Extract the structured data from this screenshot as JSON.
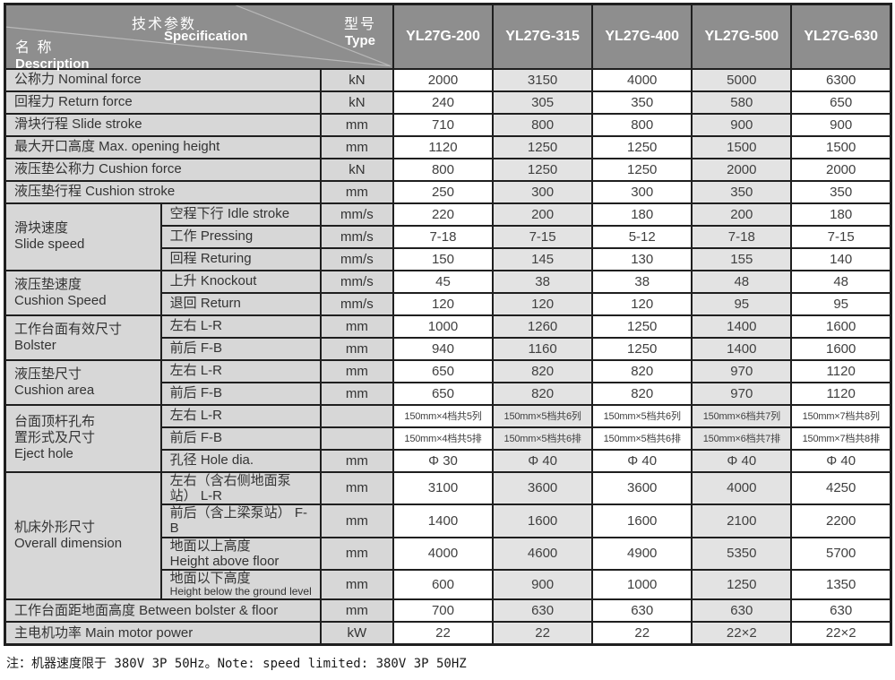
{
  "header": {
    "spec_zh": "技术参数",
    "spec_en": "Specification",
    "name_zh": "名 称",
    "name_en": "Description",
    "type_zh": "型号",
    "type_en": "Type",
    "models": [
      "YL27G-200",
      "YL27G-315",
      "YL27G-400",
      "YL27G-500",
      "YL27G-630"
    ]
  },
  "rows": [
    {
      "full": true,
      "label": [
        "公称力 Nominal force"
      ],
      "unit": "kN",
      "values": [
        "2000",
        "3150",
        "4000",
        "5000",
        "6300"
      ]
    },
    {
      "full": true,
      "label": [
        "回程力 Return force"
      ],
      "unit": "kN",
      "values": [
        "240",
        "305",
        "350",
        "580",
        "650"
      ]
    },
    {
      "full": true,
      "label": [
        "滑块行程 Slide stroke"
      ],
      "unit": "mm",
      "values": [
        "710",
        "800",
        "800",
        "900",
        "900"
      ]
    },
    {
      "full": true,
      "label": [
        "最大开口高度 Max. opening height"
      ],
      "unit": "mm",
      "values": [
        "1120",
        "1250",
        "1250",
        "1500",
        "1500"
      ]
    },
    {
      "full": true,
      "label": [
        "液压垫公称力 Cushion force"
      ],
      "unit": "kN",
      "values": [
        "800",
        "1250",
        "1250",
        "2000",
        "2000"
      ]
    },
    {
      "full": true,
      "label": [
        "液压垫行程 Cushion stroke"
      ],
      "unit": "mm",
      "values": [
        "250",
        "300",
        "300",
        "350",
        "350"
      ]
    },
    {
      "group": {
        "lines": [
          "滑块速度",
          "Slide speed"
        ],
        "span": 3
      },
      "label": [
        "空程下行 Idle stroke"
      ],
      "unit": "mm/s",
      "values": [
        "220",
        "200",
        "180",
        "200",
        "180"
      ]
    },
    {
      "label": [
        "工作 Pressing"
      ],
      "unit": "mm/s",
      "values": [
        "7-18",
        "7-15",
        "5-12",
        "7-18",
        "7-15"
      ]
    },
    {
      "label": [
        "回程 Returing"
      ],
      "unit": "mm/s",
      "values": [
        "150",
        "145",
        "130",
        "155",
        "140"
      ]
    },
    {
      "group": {
        "lines": [
          "液压垫速度",
          "Cushion Speed"
        ],
        "span": 2
      },
      "label": [
        "上升 Knockout"
      ],
      "unit": "mm/s",
      "values": [
        "45",
        "38",
        "38",
        "48",
        "48"
      ]
    },
    {
      "label": [
        "退回 Return"
      ],
      "unit": "mm/s",
      "values": [
        "120",
        "120",
        "120",
        "95",
        "95"
      ]
    },
    {
      "group": {
        "lines": [
          "工作台面有效尺寸",
          "Bolster"
        ],
        "span": 2
      },
      "label": [
        "左右 L-R"
      ],
      "unit": "mm",
      "values": [
        "1000",
        "1260",
        "1250",
        "1400",
        "1600"
      ]
    },
    {
      "label": [
        "前后 F-B"
      ],
      "unit": "mm",
      "values": [
        "940",
        "1160",
        "1250",
        "1400",
        "1600"
      ]
    },
    {
      "group": {
        "lines": [
          "液压垫尺寸",
          "Cushion area"
        ],
        "span": 2
      },
      "label": [
        "左右 L-R"
      ],
      "unit": "mm",
      "values": [
        "650",
        "820",
        "820",
        "970",
        "1120"
      ]
    },
    {
      "label": [
        "前后 F-B"
      ],
      "unit": "mm",
      "values": [
        "650",
        "820",
        "820",
        "970",
        "1120"
      ]
    },
    {
      "group": {
        "lines": [
          "台面顶杆孔布",
          "置形式及尺寸",
          "Eject hole"
        ],
        "span": 3
      },
      "label": [
        "左右 L-R"
      ],
      "unit": "",
      "vsmall": true,
      "values": [
        "150mm×4档共5列",
        "150mm×5档共6列",
        "150mm×5档共6列",
        "150mm×6档共7列",
        "150mm×7档共8列"
      ]
    },
    {
      "label": [
        "前后 F-B"
      ],
      "unit": "",
      "vsmall": true,
      "values": [
        "150mm×4档共5排",
        "150mm×5档共6排",
        "150mm×5档共6排",
        "150mm×6档共7排",
        "150mm×7档共8排"
      ]
    },
    {
      "label": [
        "孔径 Hole dia."
      ],
      "unit": "mm",
      "values": [
        "Φ 30",
        "Φ 40",
        "Φ 40",
        "Φ 40",
        "Φ 40"
      ]
    },
    {
      "group": {
        "lines": [
          "机床外形尺寸",
          "Overall dimension"
        ],
        "span": 4
      },
      "label": [
        "左右（含右侧地面泵站） L-R"
      ],
      "unit": "mm",
      "values": [
        "3100",
        "3600",
        "3600",
        "4000",
        "4250"
      ]
    },
    {
      "label": [
        "前后（含上梁泵站） F-B"
      ],
      "unit": "mm",
      "values": [
        "1400",
        "1600",
        "1600",
        "2100",
        "2200"
      ]
    },
    {
      "label": [
        "地面以上高度",
        "Height above floor"
      ],
      "unit": "mm",
      "values": [
        "4000",
        "4600",
        "4900",
        "5350",
        "5700"
      ]
    },
    {
      "label": [
        "地面以下高度",
        "Height below the ground level"
      ],
      "small2": true,
      "unit": "mm",
      "values": [
        "600",
        "900",
        "1000",
        "1250",
        "1350"
      ]
    },
    {
      "full": true,
      "label": [
        "工作台面距地面高度 Between bolster & floor"
      ],
      "unit": "mm",
      "values": [
        "700",
        "630",
        "630",
        "630",
        "630"
      ]
    },
    {
      "full": true,
      "label": [
        "主电机功率 Main motor power"
      ],
      "unit": "kW",
      "values": [
        "22",
        "22",
        "22",
        "22×2",
        "22×2"
      ]
    }
  ],
  "note": "注：机器速度限于 380V 3P 50Hz。Note: speed limited: 380V 3P 50HZ",
  "colors": {
    "header-bg": "#8e8e8e",
    "label-bg": "#d7d7d7",
    "shade-bg": "#e3e3e3",
    "border": "#1f1f1f"
  }
}
